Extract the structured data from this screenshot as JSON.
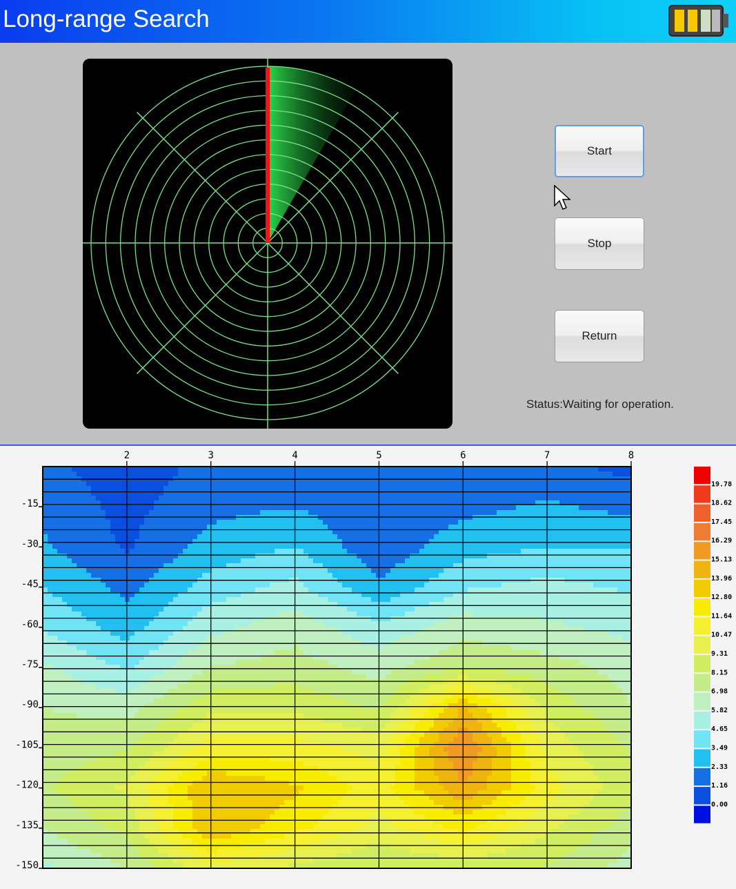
{
  "header": {
    "title": "Long-range Search",
    "battery_icon": "battery-icon"
  },
  "buttons": {
    "start": "Start",
    "stop": "Stop",
    "return": "Return"
  },
  "status": "Status:Waiting for operation.",
  "radar": {
    "rings": 12,
    "sweep_angle_deg": 0,
    "trail_deg": 30,
    "line_color": "#7be08a",
    "sweep_color": "#ff1010"
  },
  "chart_data": {
    "type": "heatmap",
    "style": "filled-contour",
    "x_ticks": [
      "2",
      "3",
      "4",
      "5",
      "6",
      "7",
      "8"
    ],
    "y_ticks": [
      "-15",
      "-30",
      "-45",
      "-60",
      "-75",
      "-90",
      "-105",
      "-120",
      "-135",
      "-150"
    ],
    "xlim": [
      1,
      8
    ],
    "ylim": [
      -150,
      0
    ],
    "x": [
      1,
      2,
      3,
      4,
      5,
      6,
      7,
      8
    ],
    "y": [
      0,
      -15,
      -30,
      -45,
      -60,
      -75,
      -90,
      -105,
      -120,
      -135,
      -150
    ],
    "z": [
      [
        1.5,
        0.5,
        1.5,
        1.8,
        1.5,
        1.5,
        1.5,
        0.8
      ],
      [
        2.0,
        0.8,
        2.0,
        2.3,
        1.5,
        2.0,
        2.5,
        2.0
      ],
      [
        2.5,
        1.0,
        2.8,
        3.5,
        1.5,
        3.0,
        3.5,
        3.5
      ],
      [
        3.5,
        2.0,
        4.0,
        5.0,
        2.5,
        4.5,
        5.0,
        4.5
      ],
      [
        4.5,
        3.0,
        5.5,
        6.5,
        5.0,
        6.5,
        6.0,
        5.5
      ],
      [
        6.0,
        4.5,
        7.0,
        7.5,
        6.5,
        8.0,
        7.5,
        6.5
      ],
      [
        7.0,
        6.5,
        9.0,
        9.0,
        8.0,
        14.0,
        9.0,
        7.0
      ],
      [
        7.5,
        8.0,
        11.0,
        11.0,
        10.0,
        16.5,
        10.0,
        8.0
      ],
      [
        8.0,
        9.5,
        14.0,
        13.0,
        11.0,
        15.0,
        11.0,
        8.5
      ],
      [
        7.0,
        8.5,
        14.0,
        12.0,
        10.0,
        12.0,
        9.5,
        7.5
      ],
      [
        5.5,
        7.0,
        10.0,
        9.0,
        8.0,
        8.5,
        8.0,
        6.5
      ]
    ],
    "legend_labels": [
      "19.78",
      "18.62",
      "17.45",
      "16.29",
      "15.13",
      "13.96",
      "12.80",
      "11.64",
      "10.47",
      "9.31",
      "8.15",
      "6.98",
      "5.82",
      "4.65",
      "3.49",
      "2.33",
      "1.16",
      "0.00"
    ],
    "legend_colors": [
      "#f00000",
      "#f03a1c",
      "#f0602c",
      "#f07c34",
      "#f09a24",
      "#f0b410",
      "#f0cc00",
      "#f8ec00",
      "#f4f030",
      "#e8f050",
      "#d0ee60",
      "#c4ec88",
      "#c0f0c0",
      "#a8f0e4",
      "#70e4f4",
      "#22c0f0",
      "#1470e4",
      "#0a50e0",
      "#0010e0"
    ],
    "legend_placement": "right"
  }
}
